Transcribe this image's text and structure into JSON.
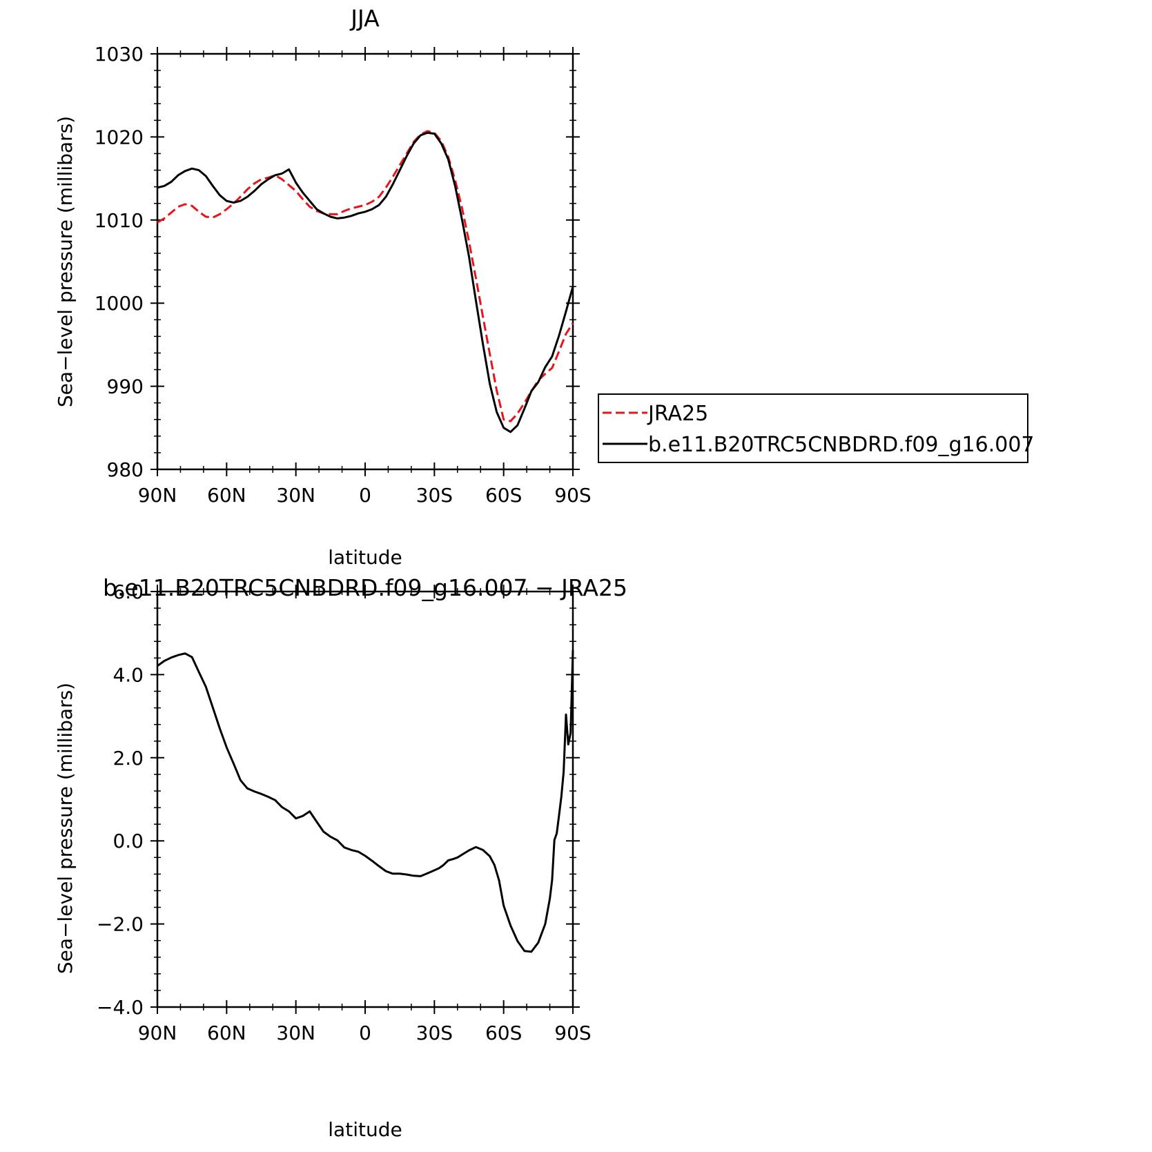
{
  "chart_data": [
    {
      "type": "line",
      "title": "JJA",
      "xlabel": "latitude",
      "ylabel": "Sea−level pressure (millibars)",
      "xlim": [
        90,
        -90
      ],
      "ylim": [
        980,
        1030
      ],
      "x_ticks": [
        {
          "value": 90,
          "label": "90N"
        },
        {
          "value": 60,
          "label": "60N"
        },
        {
          "value": 30,
          "label": "30N"
        },
        {
          "value": 0,
          "label": "0"
        },
        {
          "value": -30,
          "label": "30S"
        },
        {
          "value": -60,
          "label": "60S"
        },
        {
          "value": -90,
          "label": "90S"
        }
      ],
      "y_ticks": [
        {
          "value": 980,
          "label": "980"
        },
        {
          "value": 990,
          "label": "990"
        },
        {
          "value": 1000,
          "label": "1000"
        },
        {
          "value": 1010,
          "label": "1010"
        },
        {
          "value": 1020,
          "label": "1020"
        },
        {
          "value": 1030,
          "label": "1030"
        }
      ],
      "legend": "right",
      "series": [
        {
          "name": "JRA25",
          "color": "#e8141c",
          "dash": true,
          "x": [
            90,
            87,
            84,
            81,
            78,
            75,
            72,
            69,
            66,
            63,
            60,
            57,
            54,
            51,
            48,
            45,
            42,
            39,
            36,
            33,
            30,
            27,
            24,
            21,
            18,
            15,
            12,
            9,
            6,
            3,
            0,
            -3,
            -6,
            -9,
            -12,
            -15,
            -18,
            -21,
            -24,
            -27,
            -30,
            -33,
            -36,
            -39,
            -42,
            -45,
            -48,
            -51,
            -54,
            -57,
            -60,
            -63,
            -66,
            -69,
            -72,
            -75,
            -78,
            -81,
            -84,
            -87,
            -90
          ],
          "y": [
            1009.7,
            1010.2,
            1010.9,
            1011.6,
            1011.9,
            1011.7,
            1011.0,
            1010.4,
            1010.3,
            1010.7,
            1011.3,
            1012.0,
            1012.8,
            1013.7,
            1014.4,
            1014.9,
            1015.1,
            1015.4,
            1014.9,
            1014.2,
            1013.5,
            1012.5,
            1011.6,
            1011.1,
            1010.8,
            1010.7,
            1010.7,
            1011.1,
            1011.4,
            1011.6,
            1011.8,
            1012.2,
            1012.8,
            1013.9,
            1015.2,
            1016.6,
            1018.0,
            1019.4,
            1020.3,
            1020.7,
            1020.5,
            1019.5,
            1017.6,
            1014.8,
            1011.4,
            1007.4,
            1003.0,
            998.4,
            993.9,
            989.5,
            986.0,
            985.8,
            986.7,
            988.0,
            989.4,
            990.7,
            991.5,
            992.2,
            994.2,
            996.3,
            997.6
          ]
        },
        {
          "name": "b.e11.B20TRC5CNBDRD.f09_g16.007",
          "color": "#000000",
          "dash": false,
          "x": [
            90,
            87,
            84,
            81,
            78,
            75,
            72,
            69,
            66,
            63,
            60,
            57,
            54,
            51,
            48,
            45,
            42,
            39,
            36,
            33,
            30,
            27,
            24,
            21,
            18,
            15,
            12,
            9,
            6,
            3,
            0,
            -3,
            -6,
            -9,
            -12,
            -15,
            -18,
            -21,
            -24,
            -27,
            -30,
            -33,
            -36,
            -39,
            -42,
            -45,
            -48,
            -51,
            -54,
            -57,
            -60,
            -63,
            -66,
            -69,
            -72,
            -75,
            -78,
            -81,
            -84,
            -87,
            -90
          ],
          "y": [
            1013.9,
            1014.1,
            1014.6,
            1015.4,
            1015.9,
            1016.2,
            1016.0,
            1015.3,
            1014.1,
            1013.0,
            1012.3,
            1012.1,
            1012.3,
            1012.8,
            1013.5,
            1014.3,
            1014.9,
            1015.4,
            1015.6,
            1016.1,
            1014.5,
            1013.3,
            1012.3,
            1011.3,
            1010.8,
            1010.4,
            1010.2,
            1010.3,
            1010.5,
            1010.8,
            1011.0,
            1011.3,
            1011.8,
            1012.8,
            1014.3,
            1016.0,
            1017.7,
            1019.2,
            1020.2,
            1020.5,
            1020.4,
            1019.2,
            1017.3,
            1014.1,
            1010.0,
            1005.6,
            1000.3,
            995.1,
            990.3,
            986.9,
            985.0,
            984.5,
            985.3,
            987.3,
            989.4,
            990.5,
            992.3,
            993.6,
            996.1,
            999.0,
            1002.0
          ]
        }
      ]
    },
    {
      "type": "line",
      "title": "b.e11.B20TRC5CNBDRD.f09_g16.007 − JRA25",
      "xlabel": "latitude",
      "ylabel": "Sea−level pressure (millibars)",
      "xlim": [
        90,
        -90
      ],
      "ylim": [
        -4.0,
        6.0
      ],
      "x_ticks": [
        {
          "value": 90,
          "label": "90N"
        },
        {
          "value": 60,
          "label": "60N"
        },
        {
          "value": 30,
          "label": "30N"
        },
        {
          "value": 0,
          "label": "0"
        },
        {
          "value": -30,
          "label": "30S"
        },
        {
          "value": -60,
          "label": "60S"
        },
        {
          "value": -90,
          "label": "90S"
        }
      ],
      "y_ticks": [
        {
          "value": -4.0,
          "label": "−4.0"
        },
        {
          "value": -2.0,
          "label": "−2.0"
        },
        {
          "value": 0.0,
          "label": "0.0"
        },
        {
          "value": 2.0,
          "label": "2.0"
        },
        {
          "value": 4.0,
          "label": "4.0"
        },
        {
          "value": 6.0,
          "label": "6.0"
        }
      ],
      "series": [
        {
          "color": "#000000",
          "dash": false,
          "x": [
            90,
            87,
            84,
            81,
            78,
            75,
            72,
            69,
            66,
            63,
            60,
            57,
            54,
            51,
            48,
            45,
            42,
            39,
            36,
            33,
            30,
            27,
            24,
            21,
            18,
            15,
            12,
            9,
            6,
            3,
            0,
            -3,
            -6,
            -9,
            -12,
            -15,
            -18,
            -21,
            -24,
            -27,
            -30,
            -32,
            -34,
            -36,
            -38,
            -40,
            -42,
            -45,
            -48,
            -51,
            -54,
            -56,
            -58,
            -60,
            -63,
            -66,
            -69,
            -72,
            -75,
            -78,
            -80,
            -81,
            -82,
            -83,
            -84,
            -85,
            -86,
            -87,
            -88,
            -89,
            -90
          ],
          "y": [
            4.21,
            4.33,
            4.41,
            4.47,
            4.51,
            4.42,
            4.06,
            3.71,
            3.21,
            2.71,
            2.25,
            1.86,
            1.46,
            1.26,
            1.19,
            1.13,
            1.06,
            0.98,
            0.81,
            0.71,
            0.54,
            0.6,
            0.71,
            0.46,
            0.22,
            0.1,
            0.01,
            -0.16,
            -0.22,
            -0.26,
            -0.36,
            -0.48,
            -0.61,
            -0.73,
            -0.79,
            -0.79,
            -0.81,
            -0.84,
            -0.85,
            -0.78,
            -0.71,
            -0.66,
            -0.58,
            -0.47,
            -0.44,
            -0.4,
            -0.33,
            -0.23,
            -0.15,
            -0.22,
            -0.37,
            -0.58,
            -0.95,
            -1.56,
            -2.04,
            -2.41,
            -2.65,
            -2.67,
            -2.45,
            -2.0,
            -1.39,
            -0.94,
            0.02,
            0.18,
            0.61,
            1.07,
            1.66,
            3.04,
            2.32,
            2.6,
            4.59
          ]
        }
      ]
    }
  ]
}
